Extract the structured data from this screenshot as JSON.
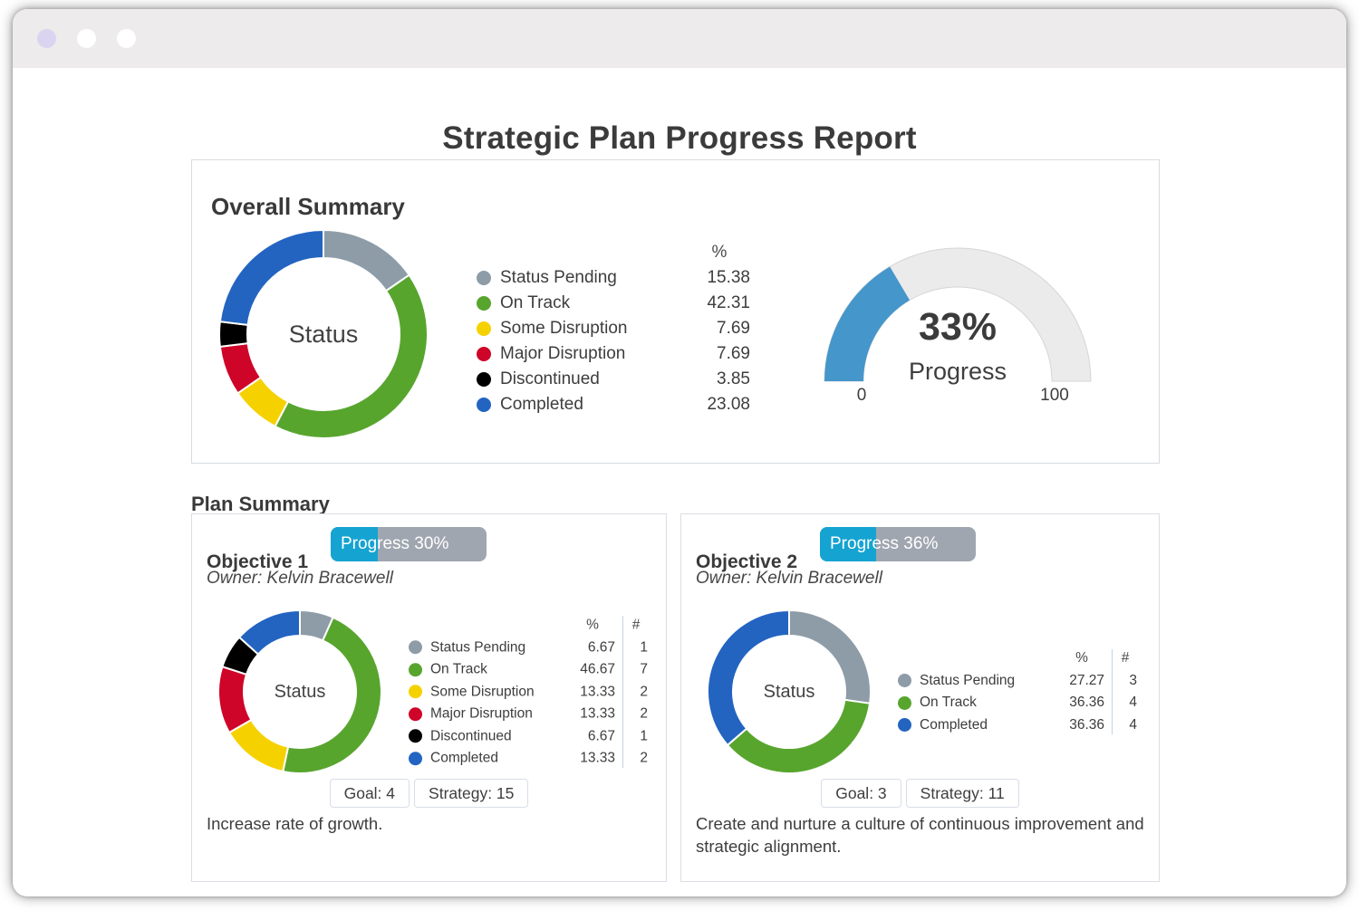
{
  "report_title": "Strategic Plan Progress Report",
  "plan_summary_heading": "Plan Summary",
  "colors": {
    "gauge_fill": "#4596cb",
    "gauge_track": "#ebebeb",
    "gauge_track_border": "#d5d5d5",
    "progress_fill": "#15a3d1",
    "progress_track": "#a0a6b0"
  },
  "overall": {
    "heading": "Overall Summary",
    "donut": {
      "center_label": "Status",
      "percent_header": "%",
      "segments": [
        {
          "label": "Status Pending",
          "pct": 15.38,
          "pct_label": "15.38",
          "color": "#8e9ca7"
        },
        {
          "label": "On Track",
          "pct": 42.31,
          "pct_label": "42.31",
          "color": "#58a52e"
        },
        {
          "label": "Some Disruption",
          "pct": 7.69,
          "pct_label": "7.69",
          "color": "#f6d100"
        },
        {
          "label": "Major Disruption",
          "pct": 7.69,
          "pct_label": "7.69",
          "color": "#ce0428"
        },
        {
          "label": "Discontinued",
          "pct": 3.85,
          "pct_label": "3.85",
          "color": "#000000"
        },
        {
          "label": "Completed",
          "pct": 23.08,
          "pct_label": "23.08",
          "color": "#2364c1"
        }
      ]
    },
    "gauge": {
      "value": 33,
      "value_label": "33%",
      "caption": "Progress",
      "min_label": "0",
      "max_label": "100"
    }
  },
  "objectives": [
    {
      "title": "Objective 1",
      "progress_pct": 30,
      "progress_label": "Progress 30%",
      "owner": "Owner: Kelvin Bracewell",
      "donut": {
        "center_label": "Status",
        "percent_header": "%",
        "count_header": "#",
        "segments": [
          {
            "label": "Status Pending",
            "pct": 6.67,
            "pct_label": "6.67",
            "count": "1",
            "color": "#8e9ca7"
          },
          {
            "label": "On Track",
            "pct": 46.67,
            "pct_label": "46.67",
            "count": "7",
            "color": "#58a52e"
          },
          {
            "label": "Some Disruption",
            "pct": 13.33,
            "pct_label": "13.33",
            "count": "2",
            "color": "#f6d100"
          },
          {
            "label": "Major Disruption",
            "pct": 13.33,
            "pct_label": "13.33",
            "count": "2",
            "color": "#ce0428"
          },
          {
            "label": "Discontinued",
            "pct": 6.67,
            "pct_label": "6.67",
            "count": "1",
            "color": "#000000"
          },
          {
            "label": "Completed",
            "pct": 13.33,
            "pct_label": "13.33",
            "count": "2",
            "color": "#2364c1"
          }
        ]
      },
      "goal_label": "Goal: 4",
      "strategy_label": "Strategy: 15",
      "description": "Increase rate of growth."
    },
    {
      "title": "Objective 2",
      "progress_pct": 36,
      "progress_label": "Progress 36%",
      "owner": "Owner: Kelvin Bracewell",
      "donut": {
        "center_label": "Status",
        "percent_header": "%",
        "count_header": "#",
        "segments": [
          {
            "label": "Status Pending",
            "pct": 27.27,
            "pct_label": "27.27",
            "count": "3",
            "color": "#8e9ca7"
          },
          {
            "label": "On Track",
            "pct": 36.36,
            "pct_label": "36.36",
            "count": "4",
            "color": "#58a52e"
          },
          {
            "label": "Completed",
            "pct": 36.36,
            "pct_label": "36.36",
            "count": "4",
            "color": "#2364c1"
          }
        ]
      },
      "goal_label": "Goal: 3",
      "strategy_label": "Strategy: 11",
      "description": "Create and nurture a culture of continuous improvement and strategic alignment."
    }
  ]
}
